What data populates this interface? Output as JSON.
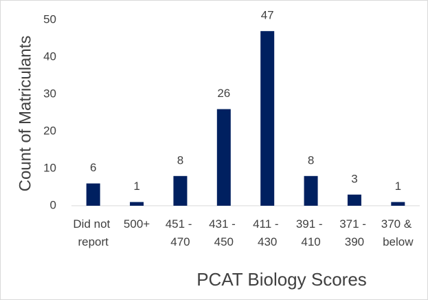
{
  "chart_data": {
    "type": "bar",
    "x_label": "PCAT Biology Scores",
    "y_label": "Count of Matriculants",
    "categories": [
      "Did not report",
      "500+",
      "451 - 470",
      "431 - 450",
      "411 - 430",
      "391 - 410",
      "371 - 390",
      "370 & below"
    ],
    "values": [
      6,
      1,
      8,
      26,
      47,
      8,
      3,
      1
    ],
    "color": "#002060",
    "ylim": [
      0,
      50
    ],
    "yticks": [
      0,
      10,
      20,
      30,
      40,
      50
    ],
    "grid": false
  }
}
